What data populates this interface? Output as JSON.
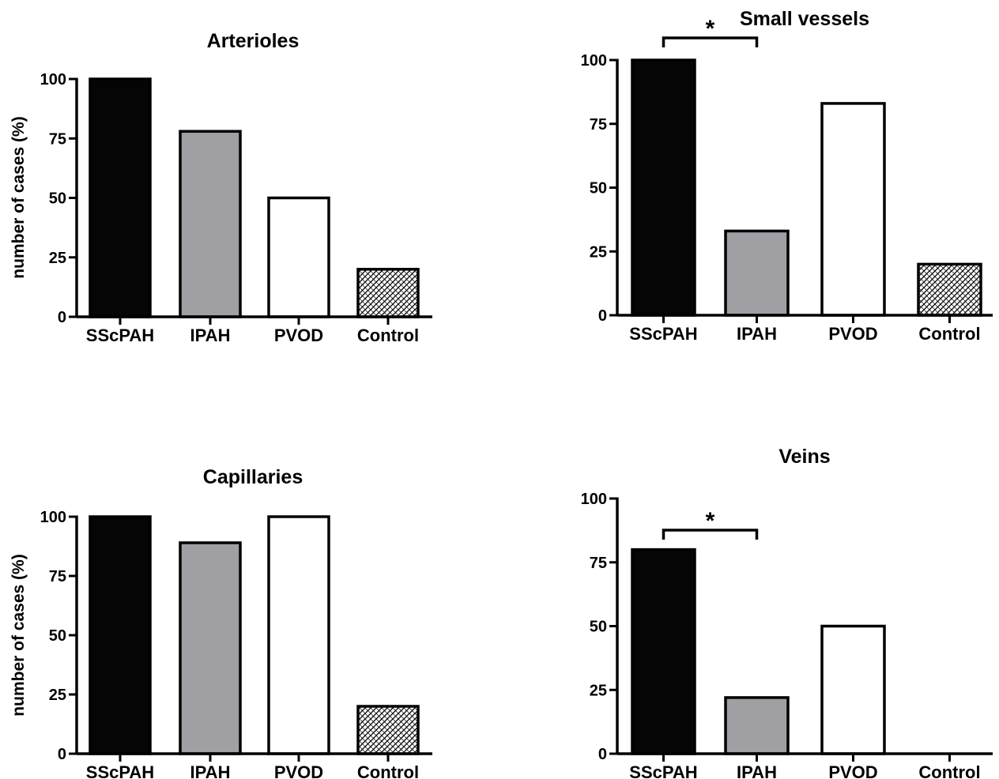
{
  "ylabel": "number of cases (%)",
  "colors": {
    "SScPAH": "#050505",
    "IPAH": "#a0a0a4",
    "PVOD": "#ffffff",
    "Control": "hatch"
  },
  "chart_data": [
    {
      "type": "bar",
      "title": "Arterioles",
      "categories": [
        "SScPAH",
        "IPAH",
        "PVOD",
        "Control"
      ],
      "values": [
        100,
        78,
        50,
        20
      ],
      "ylim": [
        0,
        100
      ],
      "yticks": [
        "0",
        "25",
        "50",
        "75",
        "100"
      ],
      "ylabel": "number of cases (%)",
      "significance": []
    },
    {
      "type": "bar",
      "title": "Small vessels",
      "categories": [
        "SScPAH",
        "IPAH",
        "PVOD",
        "Control"
      ],
      "values": [
        100,
        33,
        83,
        20
      ],
      "ylim": [
        0,
        100
      ],
      "yticks": [
        "0",
        "25",
        "50",
        "75",
        "100"
      ],
      "ylabel": "",
      "significance": [
        {
          "between": [
            "SScPAH",
            "IPAH"
          ],
          "label": "*"
        }
      ]
    },
    {
      "type": "bar",
      "title": "Capillaries",
      "categories": [
        "SScPAH",
        "IPAH",
        "PVOD",
        "Control"
      ],
      "values": [
        100,
        89,
        100,
        20
      ],
      "ylim": [
        0,
        100
      ],
      "yticks": [
        "0",
        "25",
        "50",
        "75",
        "100"
      ],
      "ylabel": "number of cases (%)",
      "significance": []
    },
    {
      "type": "bar",
      "title": "Veins",
      "categories": [
        "SScPAH",
        "IPAH",
        "PVOD",
        "Control"
      ],
      "values": [
        80,
        22,
        50,
        0
      ],
      "ylim": [
        0,
        100
      ],
      "yticks": [
        "0",
        "25",
        "50",
        "75",
        "100"
      ],
      "ylabel": "",
      "significance": [
        {
          "between": [
            "SScPAH",
            "IPAH"
          ],
          "label": "*"
        }
      ]
    }
  ]
}
